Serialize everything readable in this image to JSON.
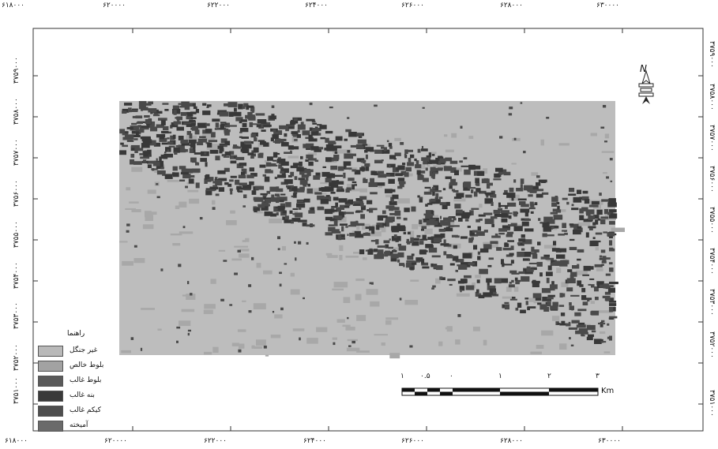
{
  "map": {
    "x_ticks": [
      "۶۱۸۰۰۰",
      "۶۲۰۰۰۰",
      "۶۲۲۰۰۰",
      "۶۲۴۰۰۰",
      "۶۲۶۰۰۰",
      "۶۲۸۰۰۰",
      "۶۳۰۰۰۰"
    ],
    "y_ticks_left": [
      "۳۷۵۱۰۰۰",
      "۳۷۵۲۰۰۰",
      "۳۷۵۳۰۰۰",
      "۳۷۵۴۰۰۰",
      "۳۷۵۵۰۰۰",
      "۳۷۵۶۰۰۰",
      "۳۷۵۷۰۰۰",
      "۳۷۵۸۰۰۰",
      "۳۷۵۹۰۰۰"
    ],
    "north_label": "N",
    "legend": {
      "title": "راهنما",
      "items": [
        {
          "label": "غیر جنگل",
          "color": "#b9b9b9"
        },
        {
          "label": "بلوط خالص",
          "color": "#a2a2a2"
        },
        {
          "label": "بلوط غالب",
          "color": "#5a5a5a"
        },
        {
          "label": "بنه غالب",
          "color": "#3a3a3a"
        },
        {
          "label": "کیکم غالب",
          "color": "#4e4e4e"
        },
        {
          "label": "آمیخته",
          "color": "#6a6a6a"
        }
      ]
    },
    "scale_bar": {
      "labels": [
        "۱",
        "۰.۵",
        "۰",
        "۱",
        "۲",
        "۳"
      ],
      "unit": "Km"
    },
    "raster_colors": {
      "background": "#bdbdbd",
      "light": "#a8a8a8",
      "dark": "#4a4a4a",
      "darker": "#383838"
    }
  }
}
